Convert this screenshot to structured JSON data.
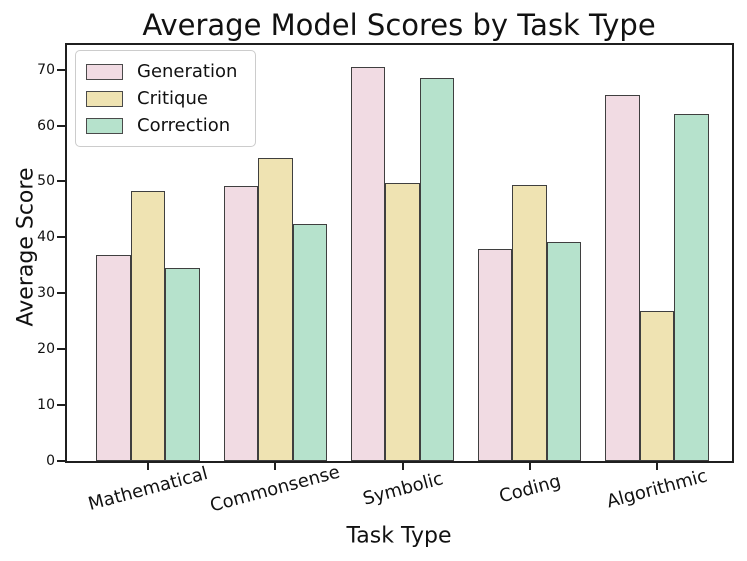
{
  "figure": {
    "background": "#ffffff"
  },
  "chart_data": {
    "type": "bar",
    "title": "Average Model Scores by Task Type",
    "xlabel": "Task Type",
    "ylabel": "Average Score",
    "categories": [
      "Mathematical",
      "Commonsense",
      "Symbolic",
      "Coding",
      "Algorithmic"
    ],
    "series": [
      {
        "name": "Generation",
        "color": "#F1DBE3",
        "values": [
          36.8,
          49.2,
          70.5,
          38.0,
          65.4
        ]
      },
      {
        "name": "Critique",
        "color": "#EFE3B2",
        "values": [
          48.3,
          54.2,
          49.7,
          49.4,
          26.8
        ]
      },
      {
        "name": "Correction",
        "color": "#B6E2CC",
        "values": [
          34.5,
          42.4,
          68.5,
          39.2,
          62.1
        ]
      }
    ],
    "yticks": [
      0,
      10,
      20,
      30,
      40,
      50,
      60,
      70
    ],
    "ylim": [
      0,
      74.4
    ],
    "grid": false,
    "bar_edge_color": "#3F3F3F",
    "axis_color": "#1F1F1F",
    "legend_position": "upper-left",
    "x_tick_rotation_deg": 15
  }
}
